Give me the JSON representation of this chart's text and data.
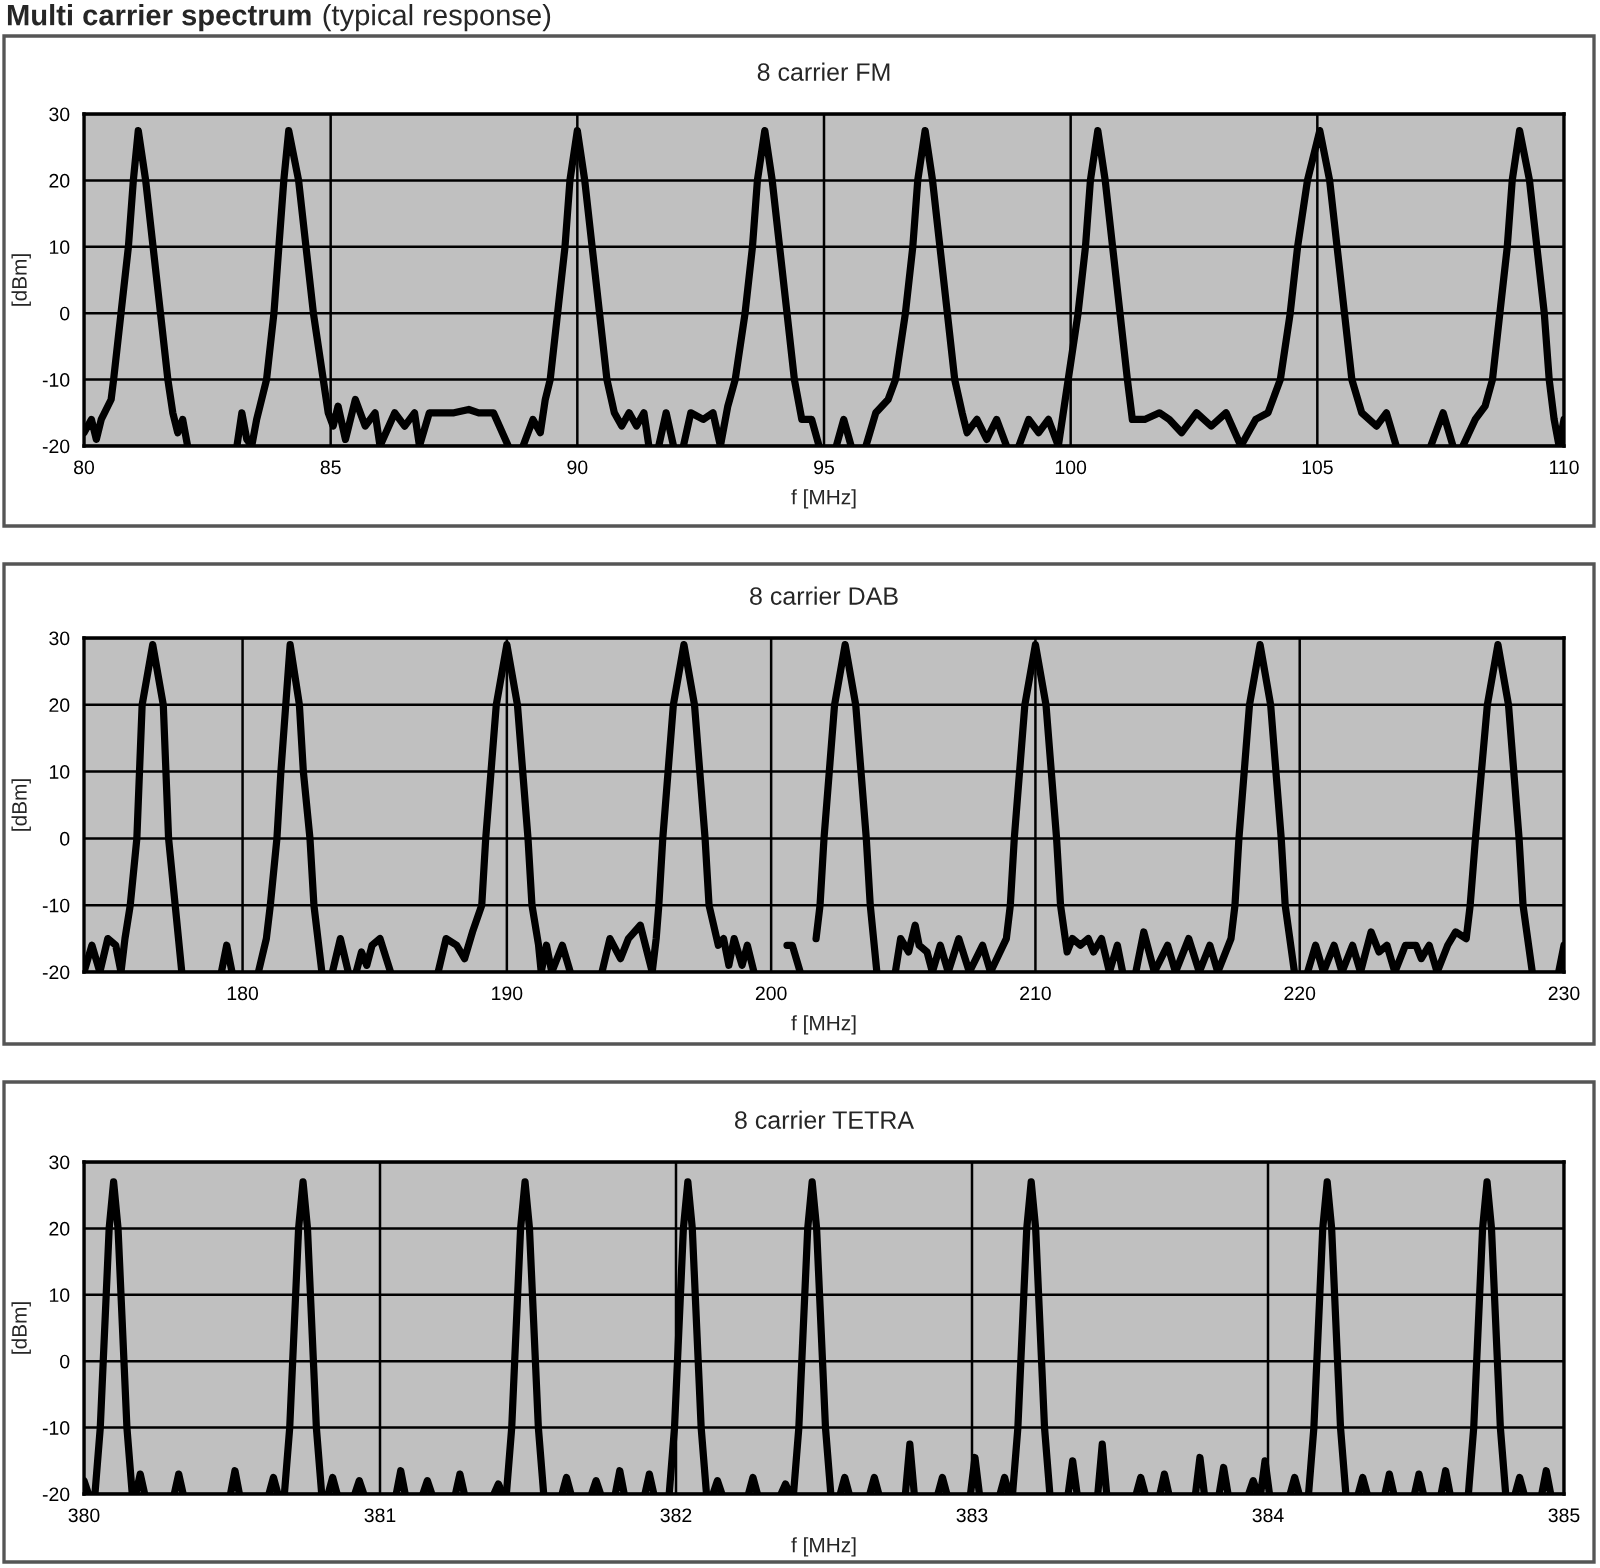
{
  "chart_data": [
    {
      "type": "other",
      "title": "Multi carrier spectrum",
      "subtitle": "(typical response)"
    },
    {
      "type": "line",
      "title": "8 carrier FM",
      "xlabel": "f [MHz]",
      "ylabel": "[dBm]",
      "xlim": [
        80,
        110
      ],
      "ylim": [
        -20,
        30
      ],
      "xticks": [
        80,
        85,
        90,
        95,
        100,
        105,
        110
      ],
      "yticks": [
        -20,
        -10,
        0,
        10,
        20,
        30
      ],
      "grid": true,
      "series": [
        {
          "color": "#000000",
          "x": [
            80.0,
            80.15,
            80.25,
            80.35,
            80.55,
            80.6,
            80.75,
            80.9,
            81.0,
            81.1,
            81.25,
            81.4,
            81.55,
            81.7,
            81.8,
            81.9,
            82.0,
            82.1,
            82.6,
            83.1,
            83.2,
            83.3,
            83.4,
            83.5,
            83.7,
            83.85,
            83.95,
            84.05,
            84.15,
            84.35,
            84.5,
            84.65,
            84.85,
            84.95,
            85.05,
            85.15,
            85.3,
            85.5,
            85.7,
            85.9,
            86.0,
            86.3,
            86.5,
            86.7,
            86.8,
            87.0,
            87.5,
            87.8,
            88.0,
            88.3,
            88.6,
            88.7,
            88.9,
            89.1,
            89.25,
            89.35,
            89.45,
            89.6,
            89.75,
            89.85,
            90.0,
            90.15,
            90.3,
            90.45,
            90.6,
            90.75,
            90.9,
            91.05,
            91.2,
            91.35,
            91.45,
            91.55,
            91.65,
            91.8,
            91.95,
            92.05,
            92.15,
            92.3,
            92.55,
            92.75,
            92.9,
            93.05,
            93.2,
            93.4,
            93.55,
            93.65,
            93.8,
            93.95,
            94.1,
            94.25,
            94.4,
            94.55,
            94.75,
            94.9,
            95.05,
            95.25,
            95.4,
            95.55,
            95.7,
            95.85,
            96.05,
            96.3,
            96.45,
            96.65,
            96.8,
            96.9,
            97.05,
            97.2,
            97.35,
            97.5,
            97.65,
            97.8,
            97.9,
            98.1,
            98.3,
            98.5,
            98.7,
            98.8,
            98.95,
            99.15,
            99.35,
            99.55,
            99.75,
            99.95,
            100.15,
            100.3,
            100.4,
            100.55,
            100.7,
            100.85,
            101.0,
            101.15,
            101.25,
            101.5,
            101.8,
            102.0,
            102.25,
            102.55,
            102.85,
            103.15,
            103.45,
            103.75,
            104.0,
            104.25,
            104.45,
            104.6,
            104.8,
            105.05,
            105.25,
            105.4,
            105.55,
            105.7,
            105.9,
            106.2,
            106.4,
            106.6,
            106.9,
            107.3,
            107.55,
            107.75,
            107.85,
            107.95,
            108.2,
            108.4,
            108.55,
            108.7,
            108.85,
            108.95,
            109.1,
            109.3,
            109.45,
            109.6,
            109.7,
            109.8,
            109.9,
            110.0
          ],
          "values": [
            -18,
            -16,
            -19,
            -16,
            -13,
            -10,
            0,
            10,
            20,
            27.5,
            20,
            10,
            0,
            -10,
            -15,
            -18,
            -16,
            -20,
            null,
            -20,
            -15,
            -19,
            -20,
            -16,
            -10,
            0,
            10,
            20,
            27.5,
            20,
            10,
            0,
            -10,
            -15,
            -17,
            -14,
            -19,
            -13,
            -17,
            -15,
            -20,
            -15,
            -17,
            -15,
            -20,
            -15,
            -15,
            -14.5,
            -15,
            -15,
            -20,
            null,
            -20,
            -16,
            -18,
            -13,
            -10,
            0,
            10,
            20,
            27.5,
            20,
            10,
            0,
            -10,
            -15,
            -17,
            -15,
            -17,
            -15,
            -20,
            null,
            -20,
            -15,
            -20,
            null,
            -20,
            -15,
            -16,
            -15,
            -20,
            -14,
            -10,
            0,
            10,
            20,
            27.5,
            20,
            10,
            0,
            -10,
            -16,
            -16,
            -20,
            null,
            -20,
            -16,
            -20,
            null,
            -20,
            -15,
            -13,
            -10,
            0,
            10,
            20,
            27.5,
            20,
            10,
            0,
            -10,
            -15,
            -18,
            -16,
            -19,
            -16,
            -20,
            null,
            -20,
            -16,
            -18,
            -16,
            -20,
            -10,
            0,
            10,
            20,
            27.5,
            20,
            10,
            0,
            -10,
            -16,
            -16,
            -15,
            -16,
            -18,
            -15,
            -17,
            -15,
            -20,
            -16,
            -15,
            -10,
            0,
            10,
            20,
            27.5,
            20,
            10,
            0,
            -10,
            -15,
            -17,
            -15,
            -20,
            null,
            -20,
            -15,
            -20,
            null,
            -20,
            -16,
            -14,
            -10,
            0,
            10,
            20,
            27.5,
            20,
            10,
            0,
            -10,
            -16,
            -20,
            -16
          ]
        }
      ]
    },
    {
      "type": "line",
      "title": "8 carrier DAB",
      "xlabel": "f [MHz]",
      "ylabel": "[dBm]",
      "xlim": [
        174,
        230
      ],
      "ylim": [
        -20,
        30
      ],
      "xticks": [
        180,
        190,
        200,
        210,
        220,
        230
      ],
      "yticks": [
        -20,
        -10,
        0,
        10,
        20,
        30
      ],
      "grid": true,
      "series": [
        {
          "color": "#000000",
          "x": [
            174.0,
            174.3,
            174.6,
            174.9,
            175.2,
            175.4,
            175.55,
            175.75,
            176.0,
            176.2,
            176.6,
            177.0,
            177.2,
            177.45,
            177.7,
            178.4,
            179.2,
            179.4,
            179.6,
            180.1,
            180.6,
            180.9,
            181.05,
            181.3,
            181.45,
            181.8,
            182.15,
            182.3,
            182.55,
            182.7,
            183.0,
            183.2,
            183.4,
            183.7,
            184.0,
            184.15,
            184.3,
            184.5,
            184.7,
            184.9,
            185.2,
            185.6,
            186.5,
            187.4,
            187.7,
            188.1,
            188.4,
            188.7,
            189.05,
            189.2,
            189.4,
            189.6,
            190.0,
            190.4,
            190.6,
            190.8,
            190.95,
            191.2,
            191.3,
            191.5,
            191.7,
            192.1,
            192.4,
            193.0,
            193.6,
            193.9,
            194.3,
            194.6,
            195.05,
            195.5,
            195.65,
            195.75,
            195.9,
            196.3,
            196.7,
            197.1,
            197.5,
            197.65,
            198.0,
            198.2,
            198.4,
            198.6,
            198.9,
            199.1,
            199.35,
            200.0,
            200.6,
            200.8,
            201.1,
            201.3,
            201.7,
            201.85,
            202.0,
            202.4,
            202.8,
            203.2,
            203.6,
            203.75,
            204.0,
            204.35,
            204.7,
            204.9,
            205.2,
            205.45,
            205.6,
            205.9,
            206.1,
            206.4,
            206.7,
            207.1,
            207.5,
            208.0,
            208.3,
            208.9,
            209.05,
            209.2,
            209.6,
            210.0,
            210.4,
            210.8,
            210.95,
            211.2,
            211.4,
            211.7,
            212.0,
            212.2,
            212.5,
            212.8,
            213.1,
            213.3,
            213.55,
            213.8,
            214.1,
            214.5,
            215.0,
            215.3,
            215.8,
            216.2,
            216.6,
            216.9,
            217.4,
            217.55,
            217.7,
            218.1,
            218.5,
            218.9,
            219.3,
            219.45,
            219.8,
            220.05,
            220.3,
            220.6,
            220.9,
            221.3,
            221.6,
            222.0,
            222.3,
            222.7,
            223.0,
            223.3,
            223.6,
            224.0,
            224.4,
            224.6,
            224.9,
            225.2,
            225.6,
            225.9,
            226.3,
            226.45,
            226.65,
            227.1,
            227.5,
            227.9,
            228.3,
            228.45,
            228.8,
            229.3,
            229.8,
            230.0
          ],
          "values": [
            -20,
            -16,
            -20,
            -15,
            -16,
            -20,
            -15,
            -10,
            0,
            20,
            29,
            20,
            0,
            -10,
            -20,
            null,
            -20,
            -16,
            -20,
            null,
            -20,
            -15,
            -10,
            0,
            10,
            29,
            20,
            10,
            0,
            -10,
            -20,
            null,
            -20,
            -15,
            -20,
            null,
            -20,
            -17,
            -19,
            -16,
            -15,
            -20,
            null,
            -20,
            -15,
            -16,
            -18,
            -14,
            -10,
            0,
            10,
            20,
            29,
            20,
            10,
            0,
            -10,
            -16,
            -20,
            -16,
            -20,
            -16,
            -20,
            null,
            -20,
            -15,
            -18,
            -15,
            -13,
            -20,
            -15,
            -10,
            0,
            20,
            29,
            20,
            0,
            -10,
            -16,
            -15,
            -19,
            -15,
            -19,
            -16,
            -20,
            null,
            -16,
            -16,
            -20,
            null,
            -15,
            -10,
            0,
            20,
            29,
            20,
            0,
            -10,
            -20,
            null,
            -20,
            -15,
            -17,
            -13,
            -16,
            -17,
            -20,
            -16,
            -20,
            -15,
            -20,
            -16,
            -20,
            -15,
            -10,
            0,
            20,
            29,
            20,
            0,
            -10,
            -17,
            -15,
            -16,
            -15,
            -17,
            -15,
            -20,
            -16,
            -20,
            null,
            -20,
            -14,
            -20,
            -16,
            -20,
            -15,
            -20,
            -16,
            -20,
            -15,
            -10,
            0,
            20,
            29,
            20,
            0,
            -10,
            -20,
            null,
            -20,
            -16,
            -20,
            -16,
            -20,
            -16,
            -20,
            -14,
            -17,
            -16,
            -20,
            -16,
            -16,
            -18,
            -16,
            -20,
            -16,
            -14,
            -15,
            -10,
            0,
            20,
            29,
            20,
            0,
            -10,
            -20,
            null,
            -20,
            -16
          ]
        }
      ]
    },
    {
      "type": "line",
      "title": "8 carrier TETRA",
      "xlabel": "f [MHz]",
      "ylabel": "[dBm]",
      "xlim": [
        380,
        385
      ],
      "ylim": [
        -20,
        30
      ],
      "xticks": [
        380,
        381,
        382,
        383,
        384,
        385
      ],
      "yticks": [
        -20,
        -10,
        0,
        10,
        20,
        30
      ],
      "grid": true,
      "series": [
        {
          "color": "#000000",
          "x": [
            380.0,
            380.015,
            380.02,
            380.037,
            380.055,
            380.065,
            380.075,
            380.085,
            380.1,
            380.115,
            380.125,
            380.135,
            380.145,
            380.163,
            380.17,
            380.175,
            380.19,
            380.205,
            380.21,
            380.305,
            380.32,
            380.335,
            380.34,
            380.495,
            380.51,
            380.525,
            380.53,
            380.625,
            380.64,
            380.655,
            380.66,
            380.677,
            380.695,
            380.705,
            380.715,
            380.725,
            380.74,
            380.755,
            380.765,
            380.775,
            380.785,
            380.803,
            380.81,
            380.825,
            380.84,
            380.855,
            380.86,
            380.915,
            380.93,
            380.945,
            380.95,
            381.055,
            381.07,
            381.085,
            381.09,
            381.145,
            381.16,
            381.175,
            381.18,
            381.255,
            381.27,
            381.285,
            381.29,
            381.385,
            381.4,
            381.415,
            381.42,
            381.427,
            381.445,
            381.455,
            381.465,
            381.475,
            381.49,
            381.505,
            381.515,
            381.525,
            381.535,
            381.553,
            381.56,
            381.615,
            381.63,
            381.645,
            381.65,
            381.715,
            381.73,
            381.745,
            381.75,
            381.795,
            381.81,
            381.825,
            381.83,
            381.895,
            381.91,
            381.925,
            381.93,
            381.977,
            381.995,
            382.005,
            382.015,
            382.025,
            382.04,
            382.055,
            382.065,
            382.075,
            382.085,
            382.103,
            382.11,
            382.125,
            382.14,
            382.155,
            382.16,
            382.245,
            382.26,
            382.275,
            382.28,
            382.355,
            382.37,
            382.385,
            382.39,
            382.397,
            382.415,
            382.425,
            382.435,
            382.445,
            382.46,
            382.475,
            382.485,
            382.495,
            382.505,
            382.523,
            382.53,
            382.555,
            382.57,
            382.585,
            382.59,
            382.655,
            382.67,
            382.685,
            382.69,
            382.775,
            382.79,
            382.805,
            382.81,
            382.885,
            382.9,
            382.915,
            382.92,
            382.995,
            383.01,
            383.025,
            383.03,
            383.095,
            383.11,
            383.125,
            383.13,
            383.137,
            383.155,
            383.165,
            383.175,
            383.185,
            383.2,
            383.215,
            383.225,
            383.235,
            383.245,
            383.263,
            383.27,
            383.325,
            383.34,
            383.355,
            383.36,
            383.425,
            383.44,
            383.455,
            383.46,
            383.555,
            383.57,
            383.585,
            383.59,
            383.635,
            383.65,
            383.665,
            383.67,
            383.755,
            383.77,
            383.785,
            383.79,
            383.835,
            383.85,
            383.865,
            383.87,
            383.935,
            383.95,
            383.965,
            383.97,
            383.975,
            383.99,
            384.005,
            384.01,
            384.075,
            384.09,
            384.105,
            384.11,
            384.137,
            384.155,
            384.165,
            384.175,
            384.185,
            384.2,
            384.215,
            384.225,
            384.235,
            384.245,
            384.263,
            384.27,
            384.305,
            384.32,
            384.335,
            384.34,
            384.395,
            384.41,
            384.425,
            384.43,
            384.495,
            384.51,
            384.525,
            384.53,
            384.585,
            384.6,
            384.615,
            384.62,
            384.677,
            384.695,
            384.705,
            384.715,
            384.725,
            384.74,
            384.755,
            384.765,
            384.775,
            384.785,
            384.803,
            384.81,
            384.835,
            384.85,
            384.865,
            384.87,
            384.925,
            384.94,
            384.955
          ],
          "values": [
            -18,
            -20,
            null,
            -20,
            -10,
            0,
            10,
            20,
            27,
            20,
            10,
            0,
            -10,
            -20,
            null,
            -20,
            -17,
            -20,
            null,
            -20,
            -17,
            -20,
            null,
            -20,
            -16.5,
            -20,
            null,
            -20,
            -17.5,
            -20,
            null,
            -20,
            -10,
            0,
            10,
            20,
            27,
            20,
            10,
            0,
            -10,
            -20,
            null,
            -20,
            -17.5,
            -20,
            null,
            -20,
            -18,
            -20,
            null,
            -20,
            -16.5,
            -20,
            null,
            -20,
            -18,
            -20,
            null,
            -20,
            -17,
            -20,
            null,
            -20,
            -18.5,
            -20,
            null,
            -20,
            -10,
            0,
            10,
            20,
            27,
            20,
            10,
            0,
            -10,
            -20,
            null,
            -20,
            -17.5,
            -20,
            null,
            -20,
            -18,
            -20,
            null,
            -20,
            -16.5,
            -20,
            null,
            -20,
            -17,
            -20,
            null,
            -20,
            -10,
            0,
            10,
            20,
            27,
            20,
            10,
            0,
            -10,
            -20,
            null,
            -20,
            -18,
            -20,
            null,
            -20,
            -17.5,
            -20,
            null,
            -20,
            -18.5,
            -20,
            null,
            -20,
            -10,
            0,
            10,
            20,
            27,
            20,
            10,
            0,
            -10,
            -20,
            null,
            -20,
            -17.5,
            -20,
            null,
            -20,
            -17.5,
            -20,
            null,
            -20,
            -12.5,
            -20,
            null,
            -20,
            -17.5,
            -20,
            null,
            -20,
            -14.5,
            -20,
            null,
            -20,
            -17.5,
            -20,
            null,
            -20,
            -10,
            0,
            10,
            20,
            27,
            20,
            10,
            0,
            -10,
            -20,
            null,
            -20,
            -15,
            -20,
            null,
            -20,
            -12.5,
            -20,
            null,
            -20,
            -17.5,
            -20,
            null,
            -20,
            -17,
            -20,
            null,
            -20,
            -14.5,
            -20,
            null,
            -20,
            -16,
            -20,
            null,
            -20,
            -18,
            -20,
            null,
            -20,
            -15,
            -20,
            null,
            -20,
            -17.5,
            -20,
            null,
            -20,
            -10,
            0,
            10,
            20,
            27,
            20,
            10,
            0,
            -10,
            -20,
            null,
            -20,
            -17.5,
            -20,
            null,
            -20,
            -17,
            -20,
            null,
            -20,
            -17,
            -20,
            null,
            -20,
            -16.5,
            -20,
            null,
            -20,
            -10,
            0,
            10,
            20,
            27,
            20,
            10,
            0,
            -10,
            -20,
            null,
            -20,
            -17.5,
            -20,
            null,
            -20,
            -16.5,
            -20
          ]
        }
      ]
    }
  ]
}
